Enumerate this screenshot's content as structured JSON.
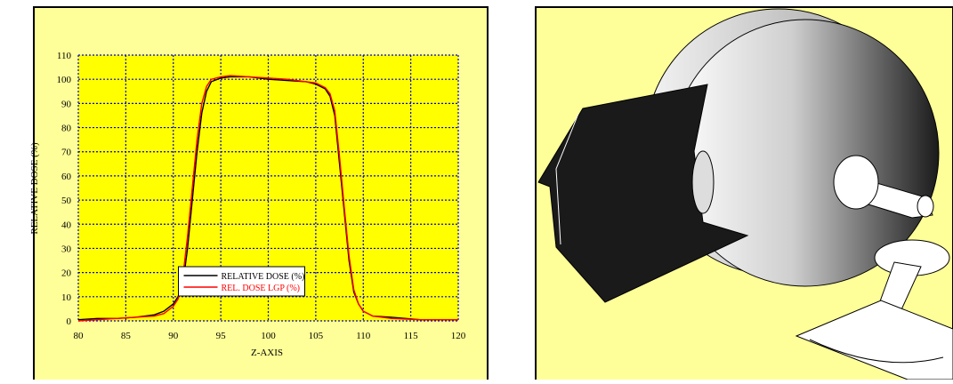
{
  "chart_data": {
    "type": "line",
    "x_label": "Z-AXIS",
    "y_label": "RELATIVE DOSE (%)",
    "x": [
      80,
      82,
      84,
      86,
      88,
      89,
      90,
      90.5,
      91,
      91.5,
      92,
      92.5,
      93,
      93.5,
      94,
      95,
      96,
      98,
      100,
      102,
      104,
      105,
      106,
      106.5,
      107,
      107.5,
      108,
      108.5,
      109,
      109.5,
      110,
      111,
      113,
      116,
      120
    ],
    "series": [
      {
        "name": "RELATIVE DOSE (%)",
        "color": "#000000",
        "values": [
          0.5,
          1,
          1,
          1.5,
          2.5,
          4,
          7,
          10,
          15,
          30,
          50,
          70,
          86,
          95,
          99,
          100.5,
          101,
          101,
          100,
          99.5,
          99,
          98,
          96,
          93,
          85,
          65,
          45,
          25,
          12,
          7,
          4,
          2,
          1.5,
          0.5,
          0.5
        ]
      },
      {
        "name": "REL. DOSE LGP (%)",
        "color": "#ff0000",
        "values": [
          0,
          0.5,
          1,
          1.5,
          2,
          3,
          6,
          9,
          18,
          35,
          55,
          75,
          90,
          97,
          100,
          101,
          101.5,
          101,
          100.5,
          100,
          99,
          98.5,
          96.5,
          94,
          87,
          68,
          47,
          27,
          13,
          7,
          4,
          2,
          1,
          0.5,
          0.5
        ]
      }
    ],
    "xlim": [
      80,
      120
    ],
    "xticks": [
      80,
      85,
      90,
      95,
      100,
      105,
      110,
      115,
      120
    ],
    "ylim": [
      0,
      110
    ],
    "yticks": [
      0,
      10,
      20,
      30,
      40,
      50,
      60,
      70,
      80,
      90,
      100,
      110
    ],
    "grid": true,
    "legend": "lower center"
  }
}
